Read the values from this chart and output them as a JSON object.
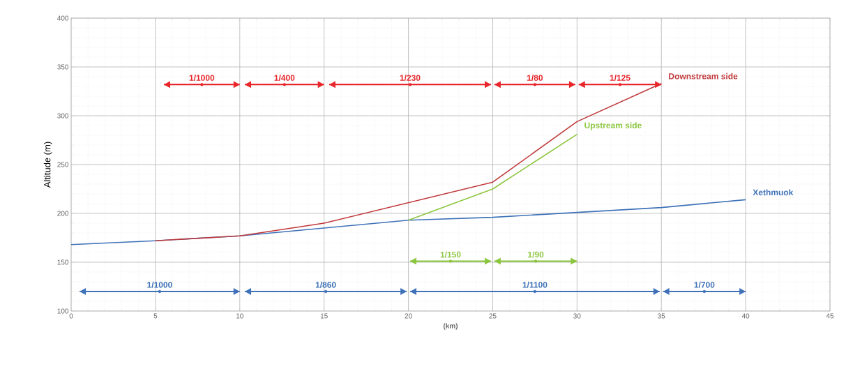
{
  "chart_data": {
    "type": "line",
    "xlabel": "(km)",
    "ylabel": "Altitude  (m)",
    "xlim": [
      0,
      45
    ],
    "xticks": [
      0,
      5,
      10,
      15,
      20,
      25,
      30,
      35,
      40,
      45
    ],
    "ylim": [
      100,
      400
    ],
    "yticks": [
      100,
      150,
      200,
      250,
      300,
      350,
      400
    ],
    "grid": true,
    "marker": "none",
    "line_style": "solid",
    "series": [
      {
        "name": "Xethmuok",
        "color": "#3f72b8",
        "x": [
          0,
          5,
          10,
          15,
          20,
          25,
          30,
          35,
          40
        ],
        "values": [
          168,
          172,
          177,
          185,
          193,
          196,
          201,
          206,
          214
        ]
      },
      {
        "name": "Downstream side",
        "color": "#c0393b",
        "x": [
          5,
          10,
          15,
          20,
          25,
          30,
          35
        ],
        "values": [
          172,
          177,
          190,
          211,
          232,
          294,
          333
        ]
      },
      {
        "name": "Upstream side",
        "color": "#8cc63f",
        "x": [
          20,
          25,
          30
        ],
        "values": [
          193,
          225,
          281
        ]
      },
      {
        "type": "scatter",
        "color": "#e8262b",
        "x": [
          7.75,
          12.65,
          20.1,
          27.5,
          32.55
        ],
        "values": [
          332,
          332,
          332,
          332,
          332
        ],
        "xerrors": [
          2.25,
          2.35,
          4.8,
          2.4,
          2.45
        ],
        "value_labels": [
          "1/1000",
          "1/400",
          "1/230",
          "1/80",
          "1/125"
        ]
      },
      {
        "type": "scatter",
        "color": "#8cc63f",
        "x": [
          22.5,
          27.55
        ],
        "values": [
          151,
          151
        ],
        "xerrors": [
          2.4,
          2.45
        ],
        "value_labels": [
          "1/150",
          "1/90"
        ]
      },
      {
        "type": "scatter",
        "color": "#3f72b8",
        "x": [
          5.25,
          15.1,
          27.5,
          37.55
        ],
        "values": [
          120,
          120,
          120,
          120
        ],
        "xerrors": [
          4.75,
          4.8,
          7.4,
          2.45
        ],
        "value_labels": [
          "1/1000",
          "1/860",
          "1/1100",
          "1/700"
        ]
      }
    ]
  }
}
